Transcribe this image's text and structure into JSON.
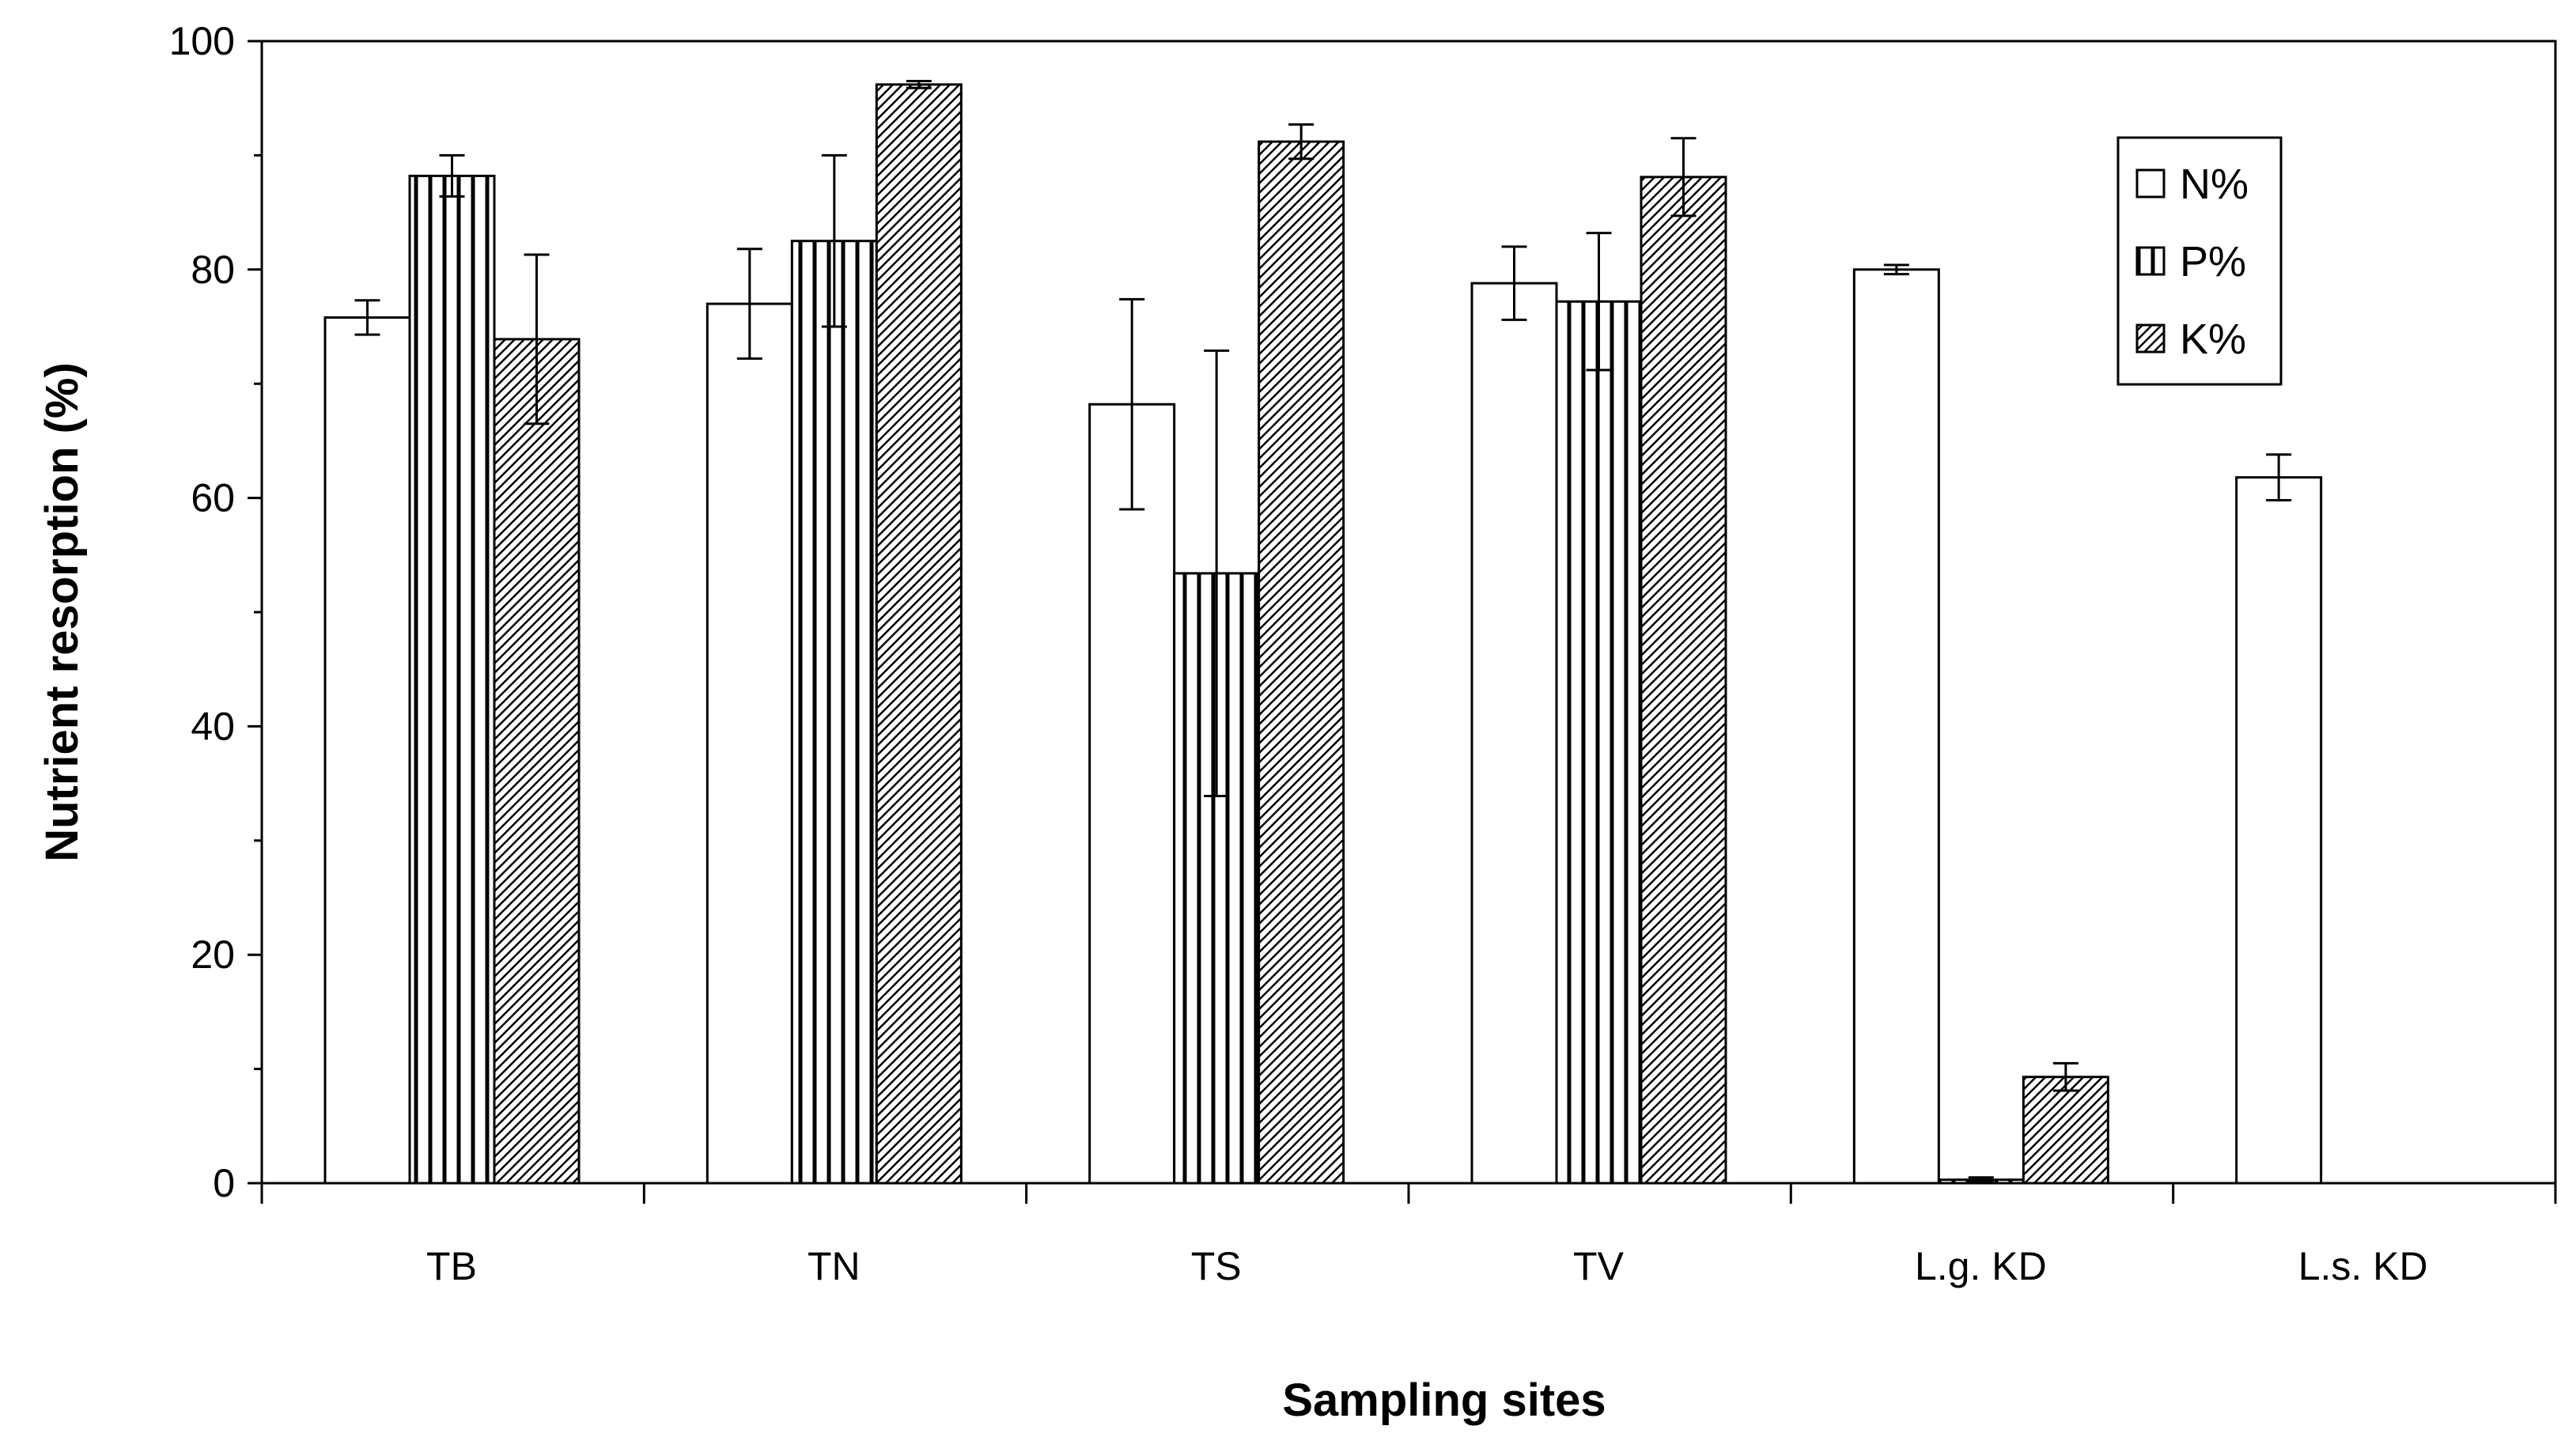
{
  "chart_data": {
    "type": "bar",
    "title": "",
    "xlabel": "Sampling sites",
    "ylabel": "Nutrient resorption (%)",
    "ylim": [
      0,
      100
    ],
    "yticks": [
      "0",
      "20",
      "40",
      "60",
      "80",
      "100"
    ],
    "categories": [
      "TB",
      "TN",
      "TS",
      "TV",
      "L.g. KD",
      "L.s. KD"
    ],
    "grid": false,
    "legend_position": "top-right",
    "series": [
      {
        "name": "N%",
        "pattern": "none",
        "values": [
          75.8,
          77.0,
          68.2,
          78.8,
          80.0,
          61.8
        ],
        "errors": [
          1.5,
          4.8,
          9.2,
          3.2,
          0.4,
          2.0
        ]
      },
      {
        "name": "P%",
        "pattern": "vertical-lines",
        "values": [
          88.2,
          82.5,
          53.4,
          77.2,
          0.3,
          null
        ],
        "errors": [
          1.8,
          7.5,
          19.5,
          6.0,
          0.2,
          null
        ]
      },
      {
        "name": "K%",
        "pattern": "diagonal-hatch",
        "values": [
          73.9,
          96.2,
          91.2,
          88.1,
          9.3,
          null
        ],
        "errors": [
          7.4,
          0.3,
          1.5,
          3.4,
          1.2,
          null
        ]
      }
    ]
  }
}
